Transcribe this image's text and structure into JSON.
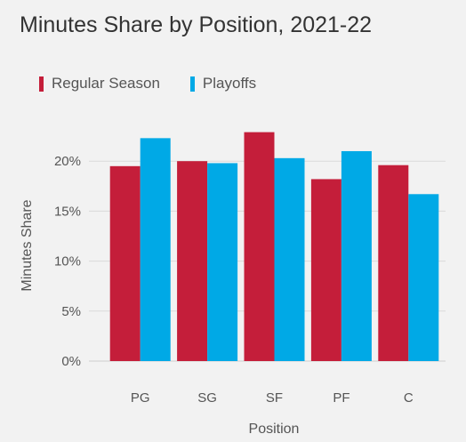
{
  "chart_data": {
    "type": "bar",
    "title": "Minutes Share by Position, 2021-22",
    "xlabel": "Position",
    "ylabel": "Minutes Share",
    "categories": [
      "PG",
      "SG",
      "SF",
      "PF",
      "C"
    ],
    "series": [
      {
        "name": "Regular Season",
        "color": "#c41e3a",
        "values": [
          19.5,
          20.0,
          22.9,
          18.2,
          19.6
        ]
      },
      {
        "name": "Playoffs",
        "color": "#00a9e6",
        "values": [
          22.3,
          19.8,
          20.3,
          21.0,
          16.7
        ]
      }
    ],
    "ylim": [
      0,
      25
    ],
    "yticks": [
      0,
      5,
      10,
      15,
      20
    ],
    "ytick_labels": [
      "0%",
      "5%",
      "10%",
      "15%",
      "20%"
    ],
    "grid": true,
    "legend_position": "top-left"
  }
}
